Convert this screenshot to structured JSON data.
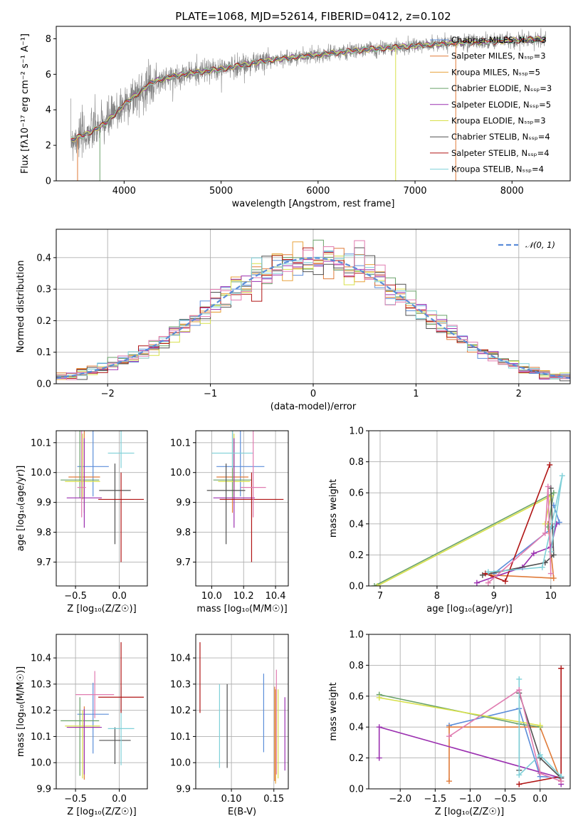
{
  "figure": {
    "title": "PLATE=1068, MJD=52614, FIBERID=0412, z=0.102"
  },
  "chart_data": [
    {
      "id": "spectrum",
      "type": "line",
      "xlabel": "wavelength [Angstrom, rest frame]",
      "ylabel": "Flux [fλ10⁻¹⁷ erg cm⁻² s⁻¹ A⁻¹]",
      "xlim": [
        3300,
        8600
      ],
      "ylim": [
        0,
        8.7
      ],
      "xticks": [
        4000,
        5000,
        6000,
        7000,
        8000
      ],
      "yticks": [
        0,
        2,
        4,
        6,
        8
      ],
      "grid": false,
      "legend_position": "top-right",
      "data_points": {
        "x": [
          3450,
          3600,
          3800,
          4000,
          4300,
          4600,
          5000,
          5500,
          6000,
          6500,
          7000,
          7500,
          8000,
          8350
        ],
        "y": [
          2.3,
          2.6,
          3.2,
          4.3,
          5.6,
          6.0,
          6.3,
          6.8,
          7.1,
          7.4,
          7.6,
          7.8,
          7.9,
          8.0
        ]
      },
      "series": [
        {
          "name": "Chabrier MILES, N_SSP=3",
          "color": "#5b8dd9"
        },
        {
          "name": "Salpeter MILES, N_SSP=3",
          "color": "#e07b39"
        },
        {
          "name": "Kroupa MILES, N_SSP=5",
          "color": "#e8a33d"
        },
        {
          "name": "Chabrier ELODIE, N_SSP=3",
          "color": "#6aa26a"
        },
        {
          "name": "Salpeter ELODIE, N_SSP=5",
          "color": "#9b30b0"
        },
        {
          "name": "Kroupa ELODIE, N_SSP=3",
          "color": "#d7e04a"
        },
        {
          "name": "Chabrier STELIB, N_SSP=4",
          "color": "#505050"
        },
        {
          "name": "Salpeter STELIB, N_SSP=4",
          "color": "#b01515"
        },
        {
          "name": "Kroupa STELIB, N_SSP=4",
          "color": "#7fd0d8"
        }
      ],
      "data_color": "#808080"
    },
    {
      "id": "residual-histogram",
      "type": "line",
      "xlabel": "(data-model)/error",
      "ylabel": "Normed distribution",
      "xlim": [
        -2.5,
        2.5
      ],
      "ylim": [
        0,
        0.49
      ],
      "xticks": [
        -2,
        -1,
        0,
        1,
        2
      ],
      "yticks": [
        0.0,
        0.1,
        0.2,
        0.3,
        0.4
      ],
      "grid": true,
      "legend_position": "top-right",
      "legend": [
        {
          "name": "𝒩(0, 1)",
          "color": "#5b8dd9",
          "style": "dashed"
        }
      ],
      "bin_width": 0.1,
      "histogram_colors": [
        "#5b8dd9",
        "#e07b39",
        "#e8a33d",
        "#6aa26a",
        "#9b30b0",
        "#d7e04a",
        "#505050",
        "#b01515",
        "#7fd0d8",
        "#e07bb0"
      ]
    },
    {
      "id": "age-vs-Z",
      "type": "scatter",
      "xlabel": "Z [log₁₀(Z/Z☉)]",
      "ylabel": "age  [log₁₀(age/yr)]",
      "xlim": [
        -0.72,
        0.32
      ],
      "ylim": [
        9.62,
        10.14
      ],
      "xticks": [
        -0.5,
        0.0
      ],
      "yticks": [
        9.7,
        9.8,
        9.9,
        10.0,
        10.1
      ],
      "grid": true,
      "points": [
        {
          "x": -0.3,
          "y": 10.02,
          "xerr": 0.18,
          "yerr": [
            0.1,
            0.19
          ],
          "color": "#5b8dd9"
        },
        {
          "x": -0.4,
          "y": 9.985,
          "xerr": 0.18,
          "yerr": [
            0.12,
            0.27
          ],
          "color": "#e07b39"
        },
        {
          "x": -0.45,
          "y": 9.975,
          "xerr": 0.22,
          "yerr": [
            0.06,
            0.23
          ],
          "color": "#6aa26a"
        },
        {
          "x": -0.42,
          "y": 9.97,
          "xerr": 0.2,
          "yerr": [
            0.06,
            0.16
          ],
          "color": "#d7e04a"
        },
        {
          "x": -0.4,
          "y": 9.915,
          "xerr": 0.2,
          "yerr": [
            0.1,
            0.2
          ],
          "color": "#9b30b0"
        },
        {
          "x": -0.05,
          "y": 9.94,
          "xerr": 0.18,
          "yerr": [
            0.18,
            0.09
          ],
          "color": "#505050"
        },
        {
          "x": 0.02,
          "y": 10.065,
          "xerr": 0.15,
          "yerr": [
            0.05,
            0.21
          ],
          "color": "#7fd0d8"
        },
        {
          "x": 0.02,
          "y": 9.91,
          "xerr": 0.26,
          "yerr": [
            0.21,
            0.09
          ],
          "color": "#b01515"
        },
        {
          "x": -0.43,
          "y": 9.95,
          "xerr": 0.05,
          "yerr": [
            0.1,
            0.31
          ],
          "color": "#e07bb0"
        }
      ]
    },
    {
      "id": "age-vs-mass",
      "type": "scatter",
      "xlabel": "mass [log₁₀(M/M☉)]",
      "ylabel": "",
      "xlim": [
        9.9,
        10.48
      ],
      "ylim": [
        9.62,
        10.14
      ],
      "xticks": [
        10.0,
        10.2,
        10.4
      ],
      "yticks": [
        9.7,
        9.8,
        9.9,
        10.0,
        10.1
      ],
      "grid": true,
      "points": [
        {
          "x": 10.18,
          "y": 10.02,
          "xerr": 0.15,
          "yerr": [
            0.1,
            0.19
          ],
          "color": "#5b8dd9"
        },
        {
          "x": 10.13,
          "y": 9.985,
          "xerr": 0.1,
          "yerr": [
            0.12,
            0.27
          ],
          "color": "#e07b39"
        },
        {
          "x": 10.13,
          "y": 9.975,
          "xerr": 0.12,
          "yerr": [
            0.06,
            0.23
          ],
          "color": "#6aa26a"
        },
        {
          "x": 10.14,
          "y": 9.97,
          "xerr": 0.1,
          "yerr": [
            0.06,
            0.16
          ],
          "color": "#d7e04a"
        },
        {
          "x": 10.14,
          "y": 9.915,
          "xerr": 0.13,
          "yerr": [
            0.1,
            0.2
          ],
          "color": "#9b30b0"
        },
        {
          "x": 10.09,
          "y": 9.94,
          "xerr": 0.12,
          "yerr": [
            0.18,
            0.09
          ],
          "color": "#505050"
        },
        {
          "x": 10.13,
          "y": 10.065,
          "xerr": 0.13,
          "yerr": [
            0.05,
            0.21
          ],
          "color": "#7fd0d8"
        },
        {
          "x": 10.25,
          "y": 9.91,
          "xerr": 0.2,
          "yerr": [
            0.21,
            0.09
          ],
          "color": "#b01515"
        },
        {
          "x": 10.26,
          "y": 9.95,
          "xerr": 0.08,
          "yerr": [
            0.1,
            0.31
          ],
          "color": "#e07bb0"
        }
      ]
    },
    {
      "id": "weight-vs-age",
      "type": "line",
      "xlabel": "age  [log₁₀(age/yr)]",
      "ylabel": "mass weight",
      "xlim": [
        6.8,
        10.34
      ],
      "ylim": [
        0,
        1.0
      ],
      "xticks": [
        7,
        8,
        9,
        10
      ],
      "yticks": [
        0.0,
        0.2,
        0.4,
        0.6,
        0.8,
        1.0
      ],
      "grid": true,
      "series": [
        {
          "color": "#5b8dd9",
          "x": [
            9.0,
            10.15,
            10.05
          ],
          "y": [
            0.08,
            0.41,
            0.52
          ]
        },
        {
          "color": "#e07b39",
          "x": [
            8.95,
            10.05,
            9.95
          ],
          "y": [
            0.07,
            0.05,
            0.4
          ]
        },
        {
          "color": "#6aa26a",
          "x": [
            6.9,
            10.05,
            9.95
          ],
          "y": [
            0.0,
            0.6,
            0.38
          ]
        },
        {
          "color": "#d7e04a",
          "x": [
            6.95,
            10.0,
            9.9
          ],
          "y": [
            0.0,
            0.58,
            0.4
          ]
        },
        {
          "color": "#9b30b0",
          "x": [
            8.7,
            9.5,
            9.7,
            10.0,
            10.1
          ],
          "y": [
            0.02,
            0.12,
            0.21,
            0.25,
            0.4
          ]
        },
        {
          "color": "#505050",
          "x": [
            8.8,
            9.9,
            10.05,
            10.0
          ],
          "y": [
            0.07,
            0.15,
            0.2,
            0.63
          ]
        },
        {
          "color": "#b01515",
          "x": [
            8.85,
            9.2,
            9.98
          ],
          "y": [
            0.08,
            0.03,
            0.78
          ]
        },
        {
          "color": "#7fd0d8",
          "x": [
            8.9,
            9.85,
            10.2,
            10.0
          ],
          "y": [
            0.09,
            0.12,
            0.71,
            0.22
          ]
        },
        {
          "color": "#e07bb0",
          "x": [
            8.9,
            9.9,
            9.95,
            10.0
          ],
          "y": [
            0.02,
            0.34,
            0.64,
            0.08
          ]
        }
      ]
    },
    {
      "id": "mass-vs-Z",
      "type": "scatter",
      "xlabel": "Z [log₁₀(Z/Z☉)]",
      "ylabel": "mass [log₁₀(M/M☉)]",
      "xlim": [
        -0.72,
        0.32
      ],
      "ylim": [
        9.9,
        10.49
      ],
      "xticks": [
        -0.5,
        0.0
      ],
      "yticks": [
        9.9,
        10.0,
        10.1,
        10.2,
        10.3,
        10.4
      ],
      "grid": true,
      "points": [
        {
          "x": -0.3,
          "y": 10.185,
          "xerr": 0.18,
          "yerr": [
            0.15,
            0.12
          ],
          "color": "#5b8dd9"
        },
        {
          "x": -0.4,
          "y": 10.135,
          "xerr": 0.18,
          "yerr": [
            0.2,
            0.08
          ],
          "color": "#e07b39"
        },
        {
          "x": -0.45,
          "y": 10.16,
          "xerr": 0.22,
          "yerr": [
            0.21,
            0.09
          ],
          "color": "#6aa26a"
        },
        {
          "x": -0.42,
          "y": 10.14,
          "xerr": 0.2,
          "yerr": [
            0.2,
            0.06
          ],
          "color": "#d7e04a"
        },
        {
          "x": -0.4,
          "y": 10.135,
          "xerr": 0.2,
          "yerr": [
            0.18,
            0.07
          ],
          "color": "#9b30b0"
        },
        {
          "x": -0.05,
          "y": 10.085,
          "xerr": 0.18,
          "yerr": [
            0.09,
            0.05
          ],
          "color": "#505050"
        },
        {
          "x": 0.02,
          "y": 10.13,
          "xerr": 0.15,
          "yerr": [
            0.14,
            0.16
          ],
          "color": "#7fd0d8"
        },
        {
          "x": 0.02,
          "y": 10.25,
          "xerr": 0.26,
          "yerr": [
            0.06,
            0.21
          ],
          "color": "#b01515"
        },
        {
          "x": -0.28,
          "y": 10.26,
          "xerr": 0.22,
          "yerr": [
            0.09,
            0.09
          ],
          "color": "#e07bb0"
        }
      ]
    },
    {
      "id": "mass-vs-ebv",
      "type": "scatter",
      "xlabel": "E(B-V)",
      "ylabel": "",
      "xlim": [
        0.058,
        0.167
      ],
      "ylim": [
        9.9,
        10.49
      ],
      "xticks": [
        0.1,
        0.15
      ],
      "yticks": [
        9.9,
        10.0,
        10.1,
        10.2,
        10.3,
        10.4
      ],
      "grid": true,
      "points": [
        {
          "x": 0.138,
          "y": 10.19,
          "yerr": [
            0.15,
            0.15
          ],
          "color": "#5b8dd9"
        },
        {
          "x": 0.151,
          "y": 10.11,
          "yerr": [
            0.18,
            0.18
          ],
          "color": "#e07b39"
        },
        {
          "x": 0.152,
          "y": 10.1,
          "yerr": [
            0.18,
            0.18
          ],
          "color": "#e8a33d"
        },
        {
          "x": 0.155,
          "y": 10.11,
          "yerr": [
            0.17,
            0.17
          ],
          "color": "#d7e04a"
        },
        {
          "x": 0.163,
          "y": 10.11,
          "yerr": [
            0.14,
            0.14
          ],
          "color": "#9b30b0"
        },
        {
          "x": 0.095,
          "y": 10.14,
          "yerr": [
            0.16,
            0.16
          ],
          "color": "#505050"
        },
        {
          "x": 0.063,
          "y": 10.325,
          "yerr": [
            0.135,
            0.135
          ],
          "color": "#b01515"
        },
        {
          "x": 0.086,
          "y": 10.14,
          "yerr": [
            0.16,
            0.16
          ],
          "color": "#7fd0d8"
        },
        {
          "x": 0.153,
          "y": 10.155,
          "yerr": [
            0.2,
            0.2
          ],
          "color": "#e07bb0"
        }
      ]
    },
    {
      "id": "weight-vs-Z",
      "type": "line",
      "xlabel": "Z [log₁₀(Z/Z☉)]",
      "ylabel": "mass weight",
      "xlim": [
        -2.45,
        0.43
      ],
      "ylim": [
        0,
        1.0
      ],
      "xticks": [
        -2.0,
        -1.5,
        -1.0,
        -0.5,
        0.0
      ],
      "yticks": [
        0.0,
        0.2,
        0.4,
        0.6,
        0.8,
        1.0
      ],
      "grid": true,
      "series": [
        {
          "color": "#5b8dd9",
          "x": [
            -1.3,
            -0.3,
            0.0,
            0.3
          ],
          "y": [
            0.41,
            0.52,
            0.08,
            0.07
          ]
        },
        {
          "color": "#e07b39",
          "x": [
            -1.3,
            -1.3,
            0.0,
            0.3
          ],
          "y": [
            0.05,
            0.4,
            0.4,
            0.05
          ]
        },
        {
          "color": "#6aa26a",
          "x": [
            -2.3,
            -0.3,
            0.0
          ],
          "y": [
            0.61,
            0.42,
            0.4
          ]
        },
        {
          "color": "#d7e04a",
          "x": [
            -2.3,
            0.0
          ],
          "y": [
            0.59,
            0.41
          ]
        },
        {
          "color": "#9b30b0",
          "x": [
            -2.3,
            -2.3,
            0.3,
            0.3
          ],
          "y": [
            0.2,
            0.4,
            0.07,
            0.03
          ]
        },
        {
          "color": "#505050",
          "x": [
            -0.3,
            -0.3,
            0.0,
            0.3
          ],
          "y": [
            0.12,
            0.62,
            0.2,
            0.07
          ]
        },
        {
          "color": "#b01515",
          "x": [
            -0.3,
            0.3,
            0.3
          ],
          "y": [
            0.03,
            0.08,
            0.78
          ]
        },
        {
          "color": "#7fd0d8",
          "x": [
            -0.3,
            -0.3,
            0.0,
            0.3
          ],
          "y": [
            0.71,
            0.09,
            0.22,
            0.08
          ]
        },
        {
          "color": "#e07bb0",
          "x": [
            -1.3,
            -0.3,
            0.0,
            0.3
          ],
          "y": [
            0.34,
            0.64,
            0.1,
            0.05
          ]
        }
      ]
    }
  ]
}
